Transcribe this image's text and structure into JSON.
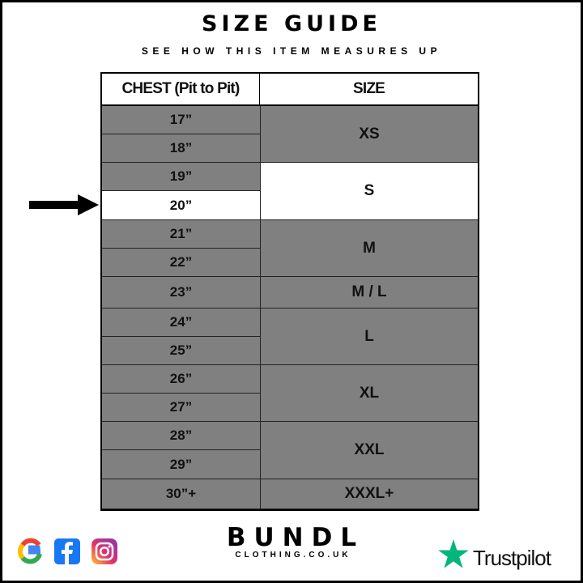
{
  "header": {
    "title": "SIZE GUIDE",
    "subtitle": "SEE HOW THIS ITEM MEASURES UP"
  },
  "table": {
    "columns": [
      "CHEST (Pit to Pit)",
      "SIZE"
    ],
    "chest_rows": [
      "17”",
      "18”",
      "19”",
      "20”",
      "21”",
      "22”",
      "23”",
      "24”",
      "25”",
      "26”",
      "27”",
      "28”",
      "29”",
      "30”+"
    ],
    "highlighted_chest": "20”",
    "sizes": [
      {
        "label": "XS",
        "chest": [
          "17”",
          "18”"
        ]
      },
      {
        "label": "S",
        "chest": [
          "19”",
          "20”"
        ],
        "highlighted": true
      },
      {
        "label": "M",
        "chest": [
          "21”",
          "22”"
        ]
      },
      {
        "label": "M / L",
        "chest": [
          "23”"
        ]
      },
      {
        "label": "L",
        "chest": [
          "24”",
          "25”"
        ]
      },
      {
        "label": "XL",
        "chest": [
          "26”",
          "27”"
        ]
      },
      {
        "label": "XXL",
        "chest": [
          "28”",
          "29”"
        ]
      },
      {
        "label": "XXXL+",
        "chest": [
          "30”+"
        ]
      }
    ]
  },
  "colors": {
    "row": "#808080",
    "highlight": "#ffffff",
    "trustpilot": "#00b67a"
  },
  "footer": {
    "icons": [
      "google-icon",
      "facebook-icon",
      "instagram-icon"
    ],
    "brand": "BUNDL",
    "brand_sub": "CLOTHING.CO.UK",
    "trustpilot": "Trustpilot"
  }
}
